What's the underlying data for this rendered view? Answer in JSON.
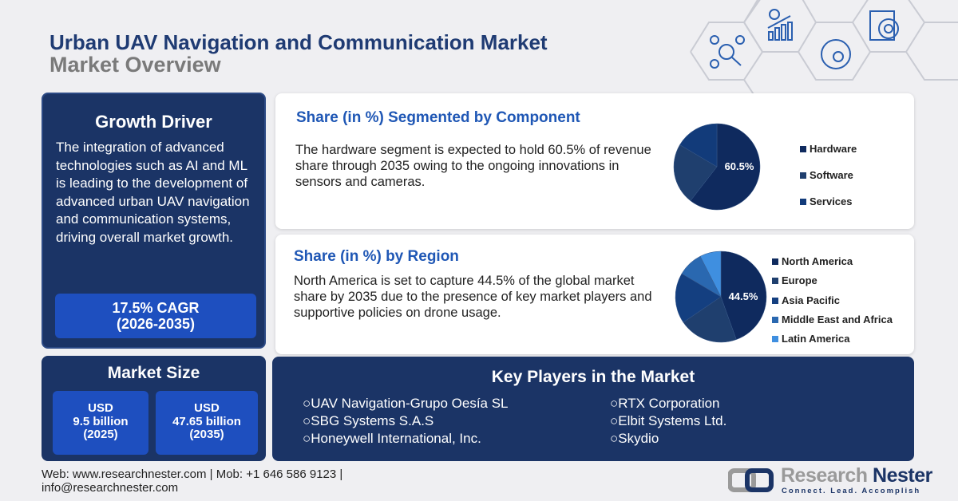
{
  "header": {
    "title": "Urban UAV Navigation and Communication Market",
    "subtitle": "Market Overview"
  },
  "growth_driver": {
    "title": "Growth Driver",
    "text": "The integration of advanced technologies such as AI and ML is leading to the development of advanced urban UAV navigation and communication systems, driving overall market growth.",
    "cagr": "17.5% CAGR",
    "cagr_period": "(2026-2035)"
  },
  "market_size": {
    "title": "Market Size",
    "boxes": [
      {
        "currency": "USD",
        "value": "9.5 billion",
        "year": "(2025)"
      },
      {
        "currency": "USD",
        "value": "47.65 billion",
        "year": "(2035)"
      }
    ]
  },
  "component": {
    "title": "Share (in %) Segmented by Component",
    "text": "The hardware segment is expected to hold 60.5% of revenue share through 2035 owing to the ongoing innovations in sensors and cameras."
  },
  "region": {
    "title": "Share (in %) by Region",
    "text": "North America is set to capture 44.5% of the global market share by 2035 due to the presence of key market players and supportive policies on drone usage."
  },
  "chart_data": [
    {
      "type": "pie",
      "categories": [
        "Hardware",
        "Software",
        "Services"
      ],
      "values": [
        60.5,
        23,
        16.5
      ],
      "data_label": "60.5%",
      "colors": [
        "#0f2a5e",
        "#1f3f6e",
        "#123b7a"
      ],
      "legend": "right"
    },
    {
      "type": "pie",
      "categories": [
        "North America",
        "Europe",
        "Asia Pacific",
        "Middle East and Africa",
        "Latin America"
      ],
      "values": [
        44.5,
        21,
        18,
        9,
        7.5
      ],
      "data_label": "44.5%",
      "colors": [
        "#0f2a5e",
        "#1f3f6e",
        "#143f80",
        "#2a68b0",
        "#3f8fe0"
      ],
      "legend": "right"
    }
  ],
  "key_players": {
    "title": "Key Players in the Market",
    "left": [
      "UAV Navigation-Grupo Oesía SL",
      "SBG Systems S.A.S",
      "Honeywell International, Inc."
    ],
    "right": [
      "RTX Corporation",
      "Elbit Systems Ltd.",
      "Skydio"
    ],
    "bullet": "○"
  },
  "footer": {
    "line1": "Web: www.researchnester.com | Mob: +1 646 586 9123 |",
    "line2": "info@researchnester.com",
    "brand1": "Research",
    "brand2": "Nester",
    "tagline": "Connect. Lead. Accomplish"
  }
}
